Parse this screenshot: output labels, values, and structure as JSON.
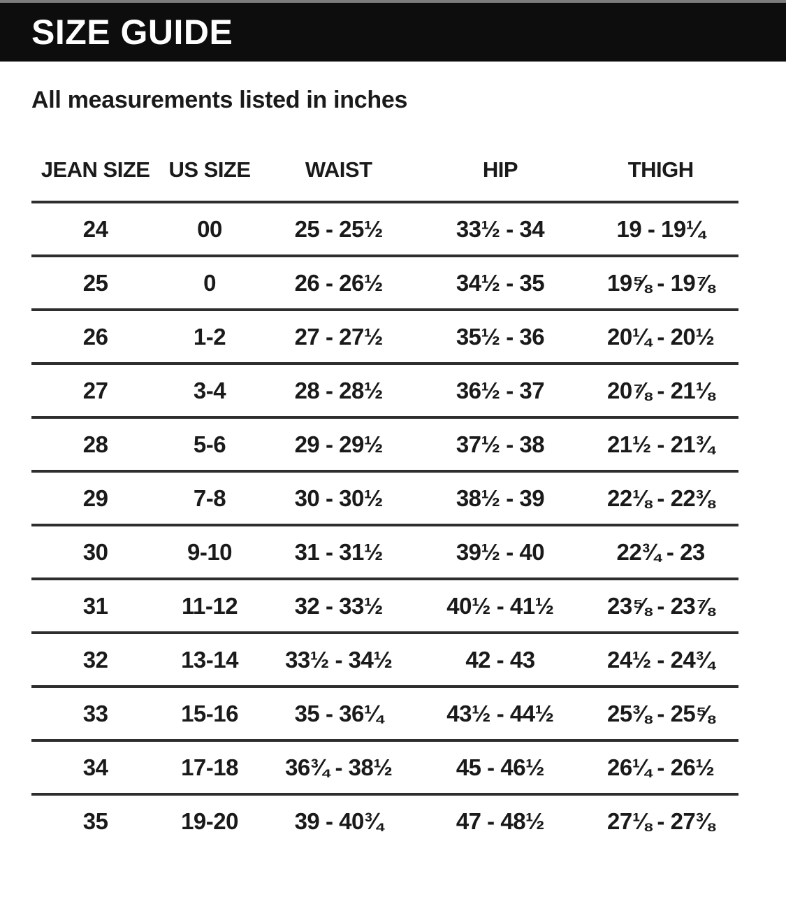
{
  "page": {
    "title": "SIZE GUIDE",
    "subtitle": "All measurements listed in inches"
  },
  "table": {
    "columns": [
      "JEAN SIZE",
      "US SIZE",
      "WAIST",
      "HIP",
      "THIGH"
    ],
    "rows": [
      [
        "24",
        "00",
        "25 - 25½",
        "33½ - 34",
        "19 - 19¼"
      ],
      [
        "25",
        "0",
        "26 - 26½",
        "34½ - 35",
        "19⅝ - 19⅞"
      ],
      [
        "26",
        "1-2",
        "27 - 27½",
        "35½ - 36",
        "20¼ - 20½"
      ],
      [
        "27",
        "3-4",
        "28 - 28½",
        "36½ - 37",
        "20⅞ - 21⅛"
      ],
      [
        "28",
        "5-6",
        "29 - 29½",
        "37½ - 38",
        "21½ - 21¾"
      ],
      [
        "29",
        "7-8",
        "30 - 30½",
        "38½ - 39",
        "22⅛ - 22⅜"
      ],
      [
        "30",
        "9-10",
        "31 - 31½",
        "39½ - 40",
        "22¾ - 23"
      ],
      [
        "31",
        "11-12",
        "32 - 33½",
        "40½ - 41½",
        "23⅝ - 23⅞"
      ],
      [
        "32",
        "13-14",
        "33½ - 34½",
        "42 - 43",
        "24½ - 24¾"
      ],
      [
        "33",
        "15-16",
        "35 - 36¼",
        "43½ - 44½",
        "25⅜ - 25⅝"
      ],
      [
        "34",
        "17-18",
        "36¾ - 38½",
        "45 - 46½",
        "26¼ - 26½"
      ],
      [
        "35",
        "19-20",
        "39 - 40¾",
        "47 - 48½",
        "27⅛ - 27⅜"
      ]
    ]
  },
  "colors": {
    "title_bar_bg": "#0d0d0d",
    "title_text": "#ffffff",
    "body_text": "#1a1a1a",
    "rule_line": "#2e2e2e",
    "top_strip": "#7c7c7c"
  }
}
